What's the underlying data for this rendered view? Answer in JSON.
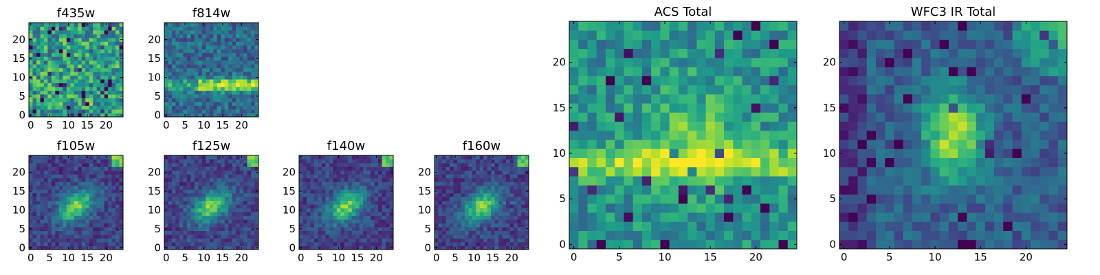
{
  "chart_data": [
    {
      "type": "heatmap",
      "title": "f435w",
      "xlim": [
        0,
        24
      ],
      "ylim": [
        0,
        24
      ],
      "grid": [
        25,
        25
      ],
      "xticks": [
        "0",
        "5",
        "10",
        "15",
        "20"
      ],
      "yticks": [
        "0",
        "5",
        "10",
        "15",
        "20"
      ],
      "pattern": "noise",
      "seed": 11,
      "colormap": "viridis"
    },
    {
      "type": "heatmap",
      "title": "f814w",
      "xlim": [
        0,
        24
      ],
      "ylim": [
        0,
        24
      ],
      "grid": [
        25,
        25
      ],
      "xticks": [
        "0",
        "5",
        "10",
        "15",
        "20"
      ],
      "yticks": [
        "0",
        "5",
        "10",
        "15",
        "20"
      ],
      "pattern": "band",
      "seed": 23,
      "colormap": "viridis"
    },
    {
      "type": "heatmap",
      "title": "f105w",
      "xlim": [
        0,
        24
      ],
      "ylim": [
        0,
        24
      ],
      "grid": [
        25,
        25
      ],
      "xticks": [
        "0",
        "5",
        "10",
        "15",
        "20"
      ],
      "yticks": [
        "0",
        "5",
        "10",
        "15",
        "20"
      ],
      "pattern": "galaxy",
      "seed": 37,
      "colormap": "viridis"
    },
    {
      "type": "heatmap",
      "title": "f125w",
      "xlim": [
        0,
        24
      ],
      "ylim": [
        0,
        24
      ],
      "grid": [
        25,
        25
      ],
      "xticks": [
        "0",
        "5",
        "10",
        "15",
        "20"
      ],
      "yticks": [
        "0",
        "5",
        "10",
        "15",
        "20"
      ],
      "pattern": "galaxy",
      "seed": 41,
      "colormap": "viridis"
    },
    {
      "type": "heatmap",
      "title": "f140w",
      "xlim": [
        0,
        24
      ],
      "ylim": [
        0,
        24
      ],
      "grid": [
        25,
        25
      ],
      "xticks": [
        "0",
        "5",
        "10",
        "15",
        "20"
      ],
      "yticks": [
        "0",
        "5",
        "10",
        "15",
        "20"
      ],
      "pattern": "galaxy",
      "seed": 53,
      "colormap": "viridis"
    },
    {
      "type": "heatmap",
      "title": "f160w",
      "xlim": [
        0,
        24
      ],
      "ylim": [
        0,
        24
      ],
      "grid": [
        25,
        25
      ],
      "xticks": [
        "0",
        "5",
        "10",
        "15",
        "20"
      ],
      "yticks": [
        "0",
        "5",
        "10",
        "15",
        "20"
      ],
      "pattern": "galaxy",
      "seed": 67,
      "colormap": "viridis"
    },
    {
      "type": "heatmap",
      "title": "ACS Total",
      "xlim": [
        0,
        24
      ],
      "ylim": [
        0,
        24
      ],
      "grid": [
        25,
        25
      ],
      "xticks": [
        "0",
        "5",
        "10",
        "15",
        "20"
      ],
      "yticks": [
        "0",
        "5",
        "10",
        "15",
        "20"
      ],
      "pattern": "acs",
      "seed": 79,
      "colormap": "viridis"
    },
    {
      "type": "heatmap",
      "title": "WFC3 IR Total",
      "xlim": [
        0,
        24
      ],
      "ylim": [
        0,
        24
      ],
      "grid": [
        25,
        25
      ],
      "xticks": [
        "0",
        "5",
        "10",
        "15",
        "20"
      ],
      "yticks": [
        "0",
        "5",
        "10",
        "15",
        "20"
      ],
      "pattern": "wfc3",
      "seed": 97,
      "colormap": "viridis"
    }
  ]
}
